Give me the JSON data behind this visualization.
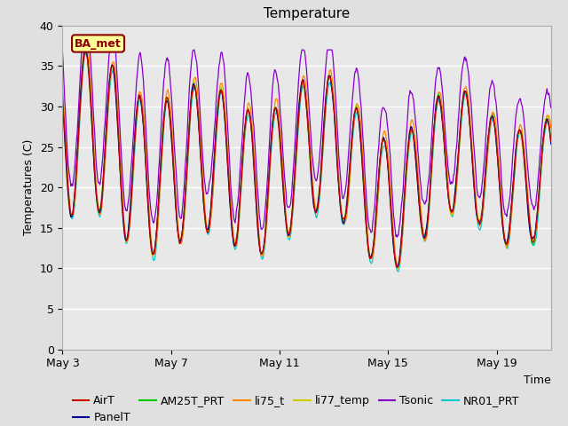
{
  "title": "Temperature",
  "xlabel": "Time",
  "ylabel": "Temperatures (C)",
  "ylim": [
    0,
    40
  ],
  "yticks": [
    0,
    5,
    10,
    15,
    20,
    25,
    30,
    35,
    40
  ],
  "date_labels": [
    "May 3",
    "May 7",
    "May 11",
    "May 15",
    "May 19"
  ],
  "x_tick_positions": [
    0,
    4,
    8,
    12,
    16
  ],
  "xlim": [
    0,
    18
  ],
  "annotation_text": "BA_met",
  "annotation_color": "#8B0000",
  "annotation_bg": "#FFFF99",
  "legend_entries": [
    "AirT",
    "PanelT",
    "AM25T_PRT",
    "li75_t",
    "li77_temp",
    "Tsonic",
    "NR01_PRT"
  ],
  "line_colors": {
    "AirT": "#CC0000",
    "PanelT": "#000099",
    "AM25T_PRT": "#00CC00",
    "li75_t": "#FF8800",
    "li77_temp": "#CCCC00",
    "Tsonic": "#8800CC",
    "NR01_PRT": "#00CCCC"
  },
  "fig_bg": "#E0E0E0",
  "plot_bg": "#E8E8E8",
  "grid_color": "#FFFFFF",
  "title_fontsize": 11,
  "axis_fontsize": 9,
  "legend_fontsize": 9
}
